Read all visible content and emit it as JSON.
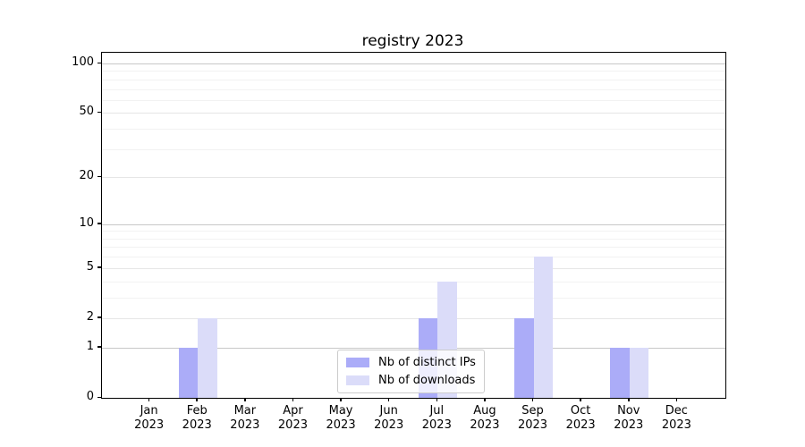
{
  "chart_data": {
    "type": "bar",
    "title": "registry 2023",
    "categories": [
      "Jan",
      "Feb",
      "Mar",
      "Apr",
      "May",
      "Jun",
      "Jul",
      "Aug",
      "Sep",
      "Oct",
      "Nov",
      "Dec"
    ],
    "category_sublabel": "2023",
    "series": [
      {
        "name": "Nb of distinct IPs",
        "color": "#abacf8",
        "values": [
          0,
          1,
          0,
          0,
          0,
          0,
          2,
          0,
          2,
          0,
          1,
          0
        ]
      },
      {
        "name": "Nb of downloads",
        "color": "#dbdcf9",
        "values": [
          0,
          2,
          0,
          0,
          0,
          0,
          4,
          0,
          6,
          0,
          1,
          0
        ]
      }
    ],
    "yscale": "log1p",
    "ylim": [
      0,
      117
    ],
    "yticks_major": [
      0,
      1,
      2,
      5,
      10,
      20,
      50,
      100
    ],
    "yticks_decade": [
      1,
      10,
      100
    ],
    "yticks_minor": [
      3,
      4,
      6,
      7,
      8,
      9,
      30,
      40,
      60,
      70,
      80,
      90
    ],
    "grid": true,
    "legend_position": "lower center"
  }
}
